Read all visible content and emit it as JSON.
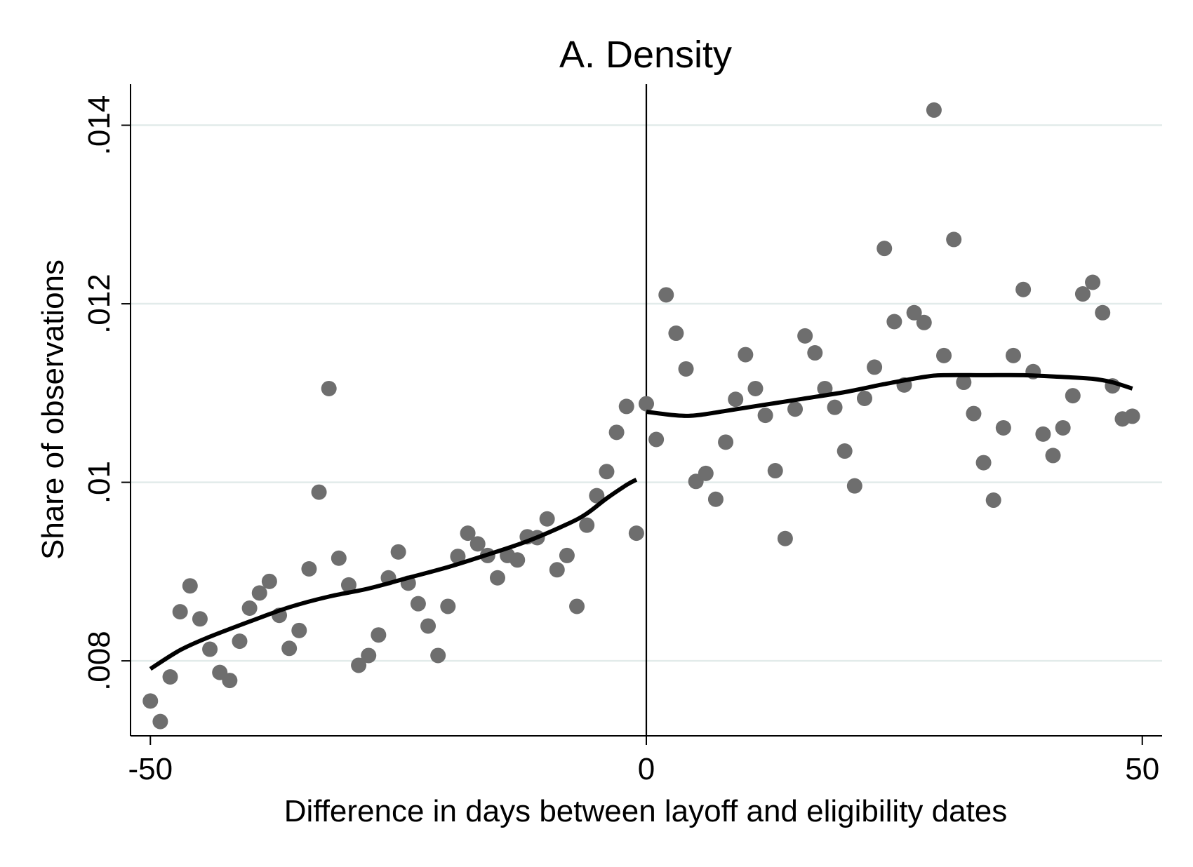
{
  "chart_data": {
    "type": "scatter",
    "title": "A. Density",
    "xlabel": "Difference in days between layoff and eligibility dates",
    "ylabel": "Share of observations",
    "xlim": [
      -52,
      52
    ],
    "ylim": [
      0.00716,
      0.01446
    ],
    "x_ticks": [
      -50,
      0,
      50
    ],
    "x_tick_labels": [
      "-50",
      "0",
      "50"
    ],
    "y_ticks": [
      0.008,
      0.01,
      0.012,
      0.014
    ],
    "y_tick_labels": [
      ".008",
      ".01",
      ".012",
      ".014"
    ],
    "grid": "horizontal",
    "cutoff_line_x": 0,
    "colors": {
      "points": "#6e6e6e",
      "fit_line": "#000000",
      "grid": "#e2ebea"
    },
    "points": [
      [
        -50,
        0.00755
      ],
      [
        -49,
        0.00732
      ],
      [
        -48,
        0.00782
      ],
      [
        -47,
        0.00855
      ],
      [
        -46,
        0.00884
      ],
      [
        -45,
        0.00847
      ],
      [
        -44,
        0.00813
      ],
      [
        -43,
        0.00787
      ],
      [
        -42,
        0.00778
      ],
      [
        -41,
        0.00822
      ],
      [
        -40,
        0.00859
      ],
      [
        -39,
        0.00876
      ],
      [
        -38,
        0.00889
      ],
      [
        -37,
        0.00851
      ],
      [
        -36,
        0.00814
      ],
      [
        -35,
        0.00834
      ],
      [
        -34,
        0.00903
      ],
      [
        -33,
        0.00989
      ],
      [
        -32,
        0.01105
      ],
      [
        -31,
        0.00915
      ],
      [
        -30,
        0.00885
      ],
      [
        -29,
        0.00795
      ],
      [
        -28,
        0.00806
      ],
      [
        -27,
        0.00829
      ],
      [
        -26,
        0.00893
      ],
      [
        -25,
        0.00922
      ],
      [
        -24,
        0.00887
      ],
      [
        -23,
        0.00864
      ],
      [
        -22,
        0.00839
      ],
      [
        -21,
        0.00806
      ],
      [
        -20,
        0.00861
      ],
      [
        -19,
        0.00917
      ],
      [
        -18,
        0.00943
      ],
      [
        -17,
        0.00931
      ],
      [
        -16,
        0.00918
      ],
      [
        -15,
        0.00893
      ],
      [
        -14,
        0.00918
      ],
      [
        -13,
        0.00913
      ],
      [
        -12,
        0.00939
      ],
      [
        -11,
        0.00938
      ],
      [
        -10,
        0.00959
      ],
      [
        -9,
        0.00902
      ],
      [
        -8,
        0.00918
      ],
      [
        -7,
        0.00861
      ],
      [
        -6,
        0.00952
      ],
      [
        -5,
        0.00985
      ],
      [
        -4,
        0.01012
      ],
      [
        -3,
        0.01056
      ],
      [
        -2,
        0.01085
      ],
      [
        -1,
        0.00943
      ],
      [
        0,
        0.01088
      ],
      [
        1,
        0.01048
      ],
      [
        2,
        0.0121
      ],
      [
        3,
        0.01167
      ],
      [
        4,
        0.01127
      ],
      [
        5,
        0.01001
      ],
      [
        6,
        0.0101
      ],
      [
        7,
        0.00981
      ],
      [
        8,
        0.01045
      ],
      [
        9,
        0.01093
      ],
      [
        10,
        0.01143
      ],
      [
        11,
        0.01105
      ],
      [
        12,
        0.01075
      ],
      [
        13,
        0.01013
      ],
      [
        14,
        0.00937
      ],
      [
        15,
        0.01082
      ],
      [
        16,
        0.01164
      ],
      [
        17,
        0.01145
      ],
      [
        18,
        0.01105
      ],
      [
        19,
        0.01084
      ],
      [
        20,
        0.01035
      ],
      [
        21,
        0.00996
      ],
      [
        22,
        0.01094
      ],
      [
        23,
        0.01129
      ],
      [
        24,
        0.01262
      ],
      [
        25,
        0.0118
      ],
      [
        26,
        0.01109
      ],
      [
        27,
        0.0119
      ],
      [
        28,
        0.01179
      ],
      [
        29,
        0.01417
      ],
      [
        30,
        0.01142
      ],
      [
        31,
        0.01272
      ],
      [
        32,
        0.01112
      ],
      [
        33,
        0.01077
      ],
      [
        34,
        0.01022
      ],
      [
        35,
        0.0098
      ],
      [
        36,
        0.01061
      ],
      [
        37,
        0.01142
      ],
      [
        38,
        0.01216
      ],
      [
        39,
        0.01124
      ],
      [
        40,
        0.01054
      ],
      [
        41,
        0.0103
      ],
      [
        42,
        0.01061
      ],
      [
        43,
        0.01097
      ],
      [
        44,
        0.01211
      ],
      [
        45,
        0.01224
      ],
      [
        46,
        0.0119
      ],
      [
        47,
        0.01108
      ],
      [
        48,
        0.01071
      ],
      [
        49,
        0.01074
      ]
    ],
    "fit_left": [
      [
        -50,
        0.00791
      ],
      [
        -47,
        0.00812
      ],
      [
        -44,
        0.00827
      ],
      [
        -40,
        0.00844
      ],
      [
        -36,
        0.0086
      ],
      [
        -32,
        0.00872
      ],
      [
        -28,
        0.00881
      ],
      [
        -24,
        0.00893
      ],
      [
        -20,
        0.00905
      ],
      [
        -16,
        0.00919
      ],
      [
        -12,
        0.00934
      ],
      [
        -8,
        0.00953
      ],
      [
        -6,
        0.00965
      ],
      [
        -4,
        0.00982
      ],
      [
        -2,
        0.00997
      ],
      [
        -1,
        0.01003
      ]
    ],
    "fit_right": [
      [
        0,
        0.01079
      ],
      [
        3,
        0.01075
      ],
      [
        5,
        0.01075
      ],
      [
        8,
        0.0108
      ],
      [
        12,
        0.01087
      ],
      [
        16,
        0.01094
      ],
      [
        20,
        0.01101
      ],
      [
        24,
        0.0111
      ],
      [
        28,
        0.01118
      ],
      [
        30,
        0.0112
      ],
      [
        34,
        0.0112
      ],
      [
        38,
        0.0112
      ],
      [
        42,
        0.01118
      ],
      [
        45,
        0.01116
      ],
      [
        47,
        0.01112
      ],
      [
        49,
        0.01105
      ]
    ]
  }
}
